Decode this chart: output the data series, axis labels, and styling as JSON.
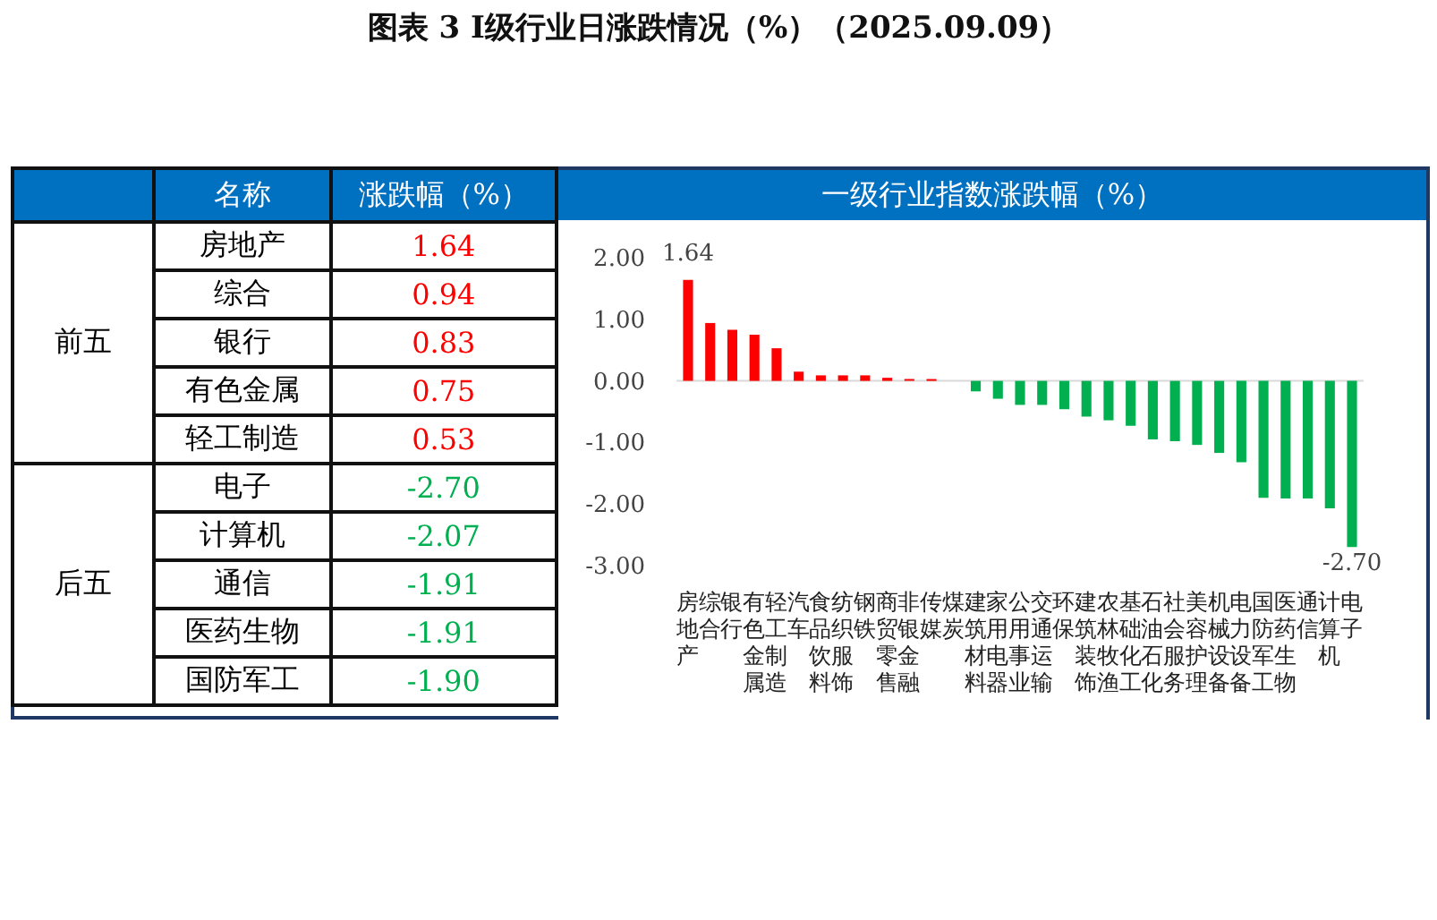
{
  "chart_data": [
    {
      "type": "other",
      "title": "图表 3  Ⅰ级行业日涨跌情况（%）（2025.09.09）",
      "xlabel": "名称",
      "ylabel": "涨跌幅（%）",
      "annotations": [
        "前五",
        "后五"
      ],
      "categories": [
        "房地产",
        "综合",
        "银行",
        "有色金属",
        "轻工制造",
        "电子",
        "计算机",
        "通信",
        "医药生物",
        "国防军工"
      ],
      "values": [
        1.64,
        0.94,
        0.83,
        0.75,
        0.53,
        -2.7,
        -2.07,
        -1.91,
        -1.91,
        -1.9
      ],
      "colors": [
        "#ff0000",
        "#ff0000",
        "#ff0000",
        "#ff0000",
        "#ff0000",
        "#00b050",
        "#00b050",
        "#00b050",
        "#00b050",
        "#00b050"
      ],
      "data_labels": true,
      "value_labels": [
        "1.64",
        "0.94",
        "0.83",
        "0.75",
        "0.53",
        "-2.70",
        "-2.07",
        "-1.91",
        "-1.91",
        "-1.90"
      ]
    },
    {
      "type": "bar",
      "title": "一级行业指数涨跌幅（%）",
      "categories": [
        "房地产",
        "综合",
        "银行",
        "有色金属",
        "轻工制造",
        "汽车",
        "食品饮料",
        "纺织服饰",
        "钢铁",
        "商贸零售",
        "非银金融",
        "传媒",
        "煤炭",
        "建筑材料",
        "家用电器",
        "公用事业",
        "交通运输",
        "环保",
        "建筑装饰",
        "农林牧渔",
        "基础化工",
        "石油石化",
        "社会服务",
        "美容护理",
        "机械设备",
        "电力设备",
        "国防军工",
        "医药生物",
        "通信",
        "计算机",
        "电子"
      ],
      "values": [
        1.64,
        0.94,
        0.83,
        0.75,
        0.53,
        0.15,
        0.09,
        0.09,
        0.09,
        0.05,
        0.03,
        0.03,
        0.0,
        -0.17,
        -0.29,
        -0.39,
        -0.39,
        -0.46,
        -0.58,
        -0.64,
        -0.73,
        -0.95,
        -0.98,
        -1.04,
        -1.17,
        -1.32,
        -1.9,
        -1.91,
        -1.91,
        -2.07,
        -2.7
      ],
      "colors": [
        "#ff0000",
        "#ff0000",
        "#ff0000",
        "#ff0000",
        "#ff0000",
        "#ff0000",
        "#ff0000",
        "#ff0000",
        "#ff0000",
        "#ff0000",
        "#ff0000",
        "#ff0000",
        "#00b050",
        "#00b050",
        "#00b050",
        "#00b050",
        "#00b050",
        "#00b050",
        "#00b050",
        "#00b050",
        "#00b050",
        "#00b050",
        "#00b050",
        "#00b050",
        "#00b050",
        "#00b050",
        "#00b050",
        "#00b050",
        "#00b050",
        "#00b050",
        "#00b050"
      ],
      "value_labels": [
        "1.64",
        null,
        null,
        null,
        null,
        null,
        null,
        null,
        null,
        null,
        null,
        null,
        null,
        null,
        null,
        null,
        null,
        null,
        null,
        null,
        null,
        null,
        null,
        null,
        null,
        null,
        null,
        null,
        null,
        null,
        "-2.70"
      ],
      "ylim": [
        -3,
        2
      ],
      "yticks": [
        {
          "value": 2,
          "label": "2.00"
        },
        {
          "value": 1,
          "label": "1.00"
        },
        {
          "value": 0,
          "label": "0.00"
        },
        {
          "value": -1,
          "label": "-1.00"
        },
        {
          "value": -2,
          "label": "-2.00"
        },
        {
          "value": -3,
          "label": "-3.00"
        }
      ],
      "ref_lines": [
        {
          "axis": "y",
          "value": 0,
          "color": "#d9d9d9"
        }
      ],
      "grid": false
    }
  ]
}
